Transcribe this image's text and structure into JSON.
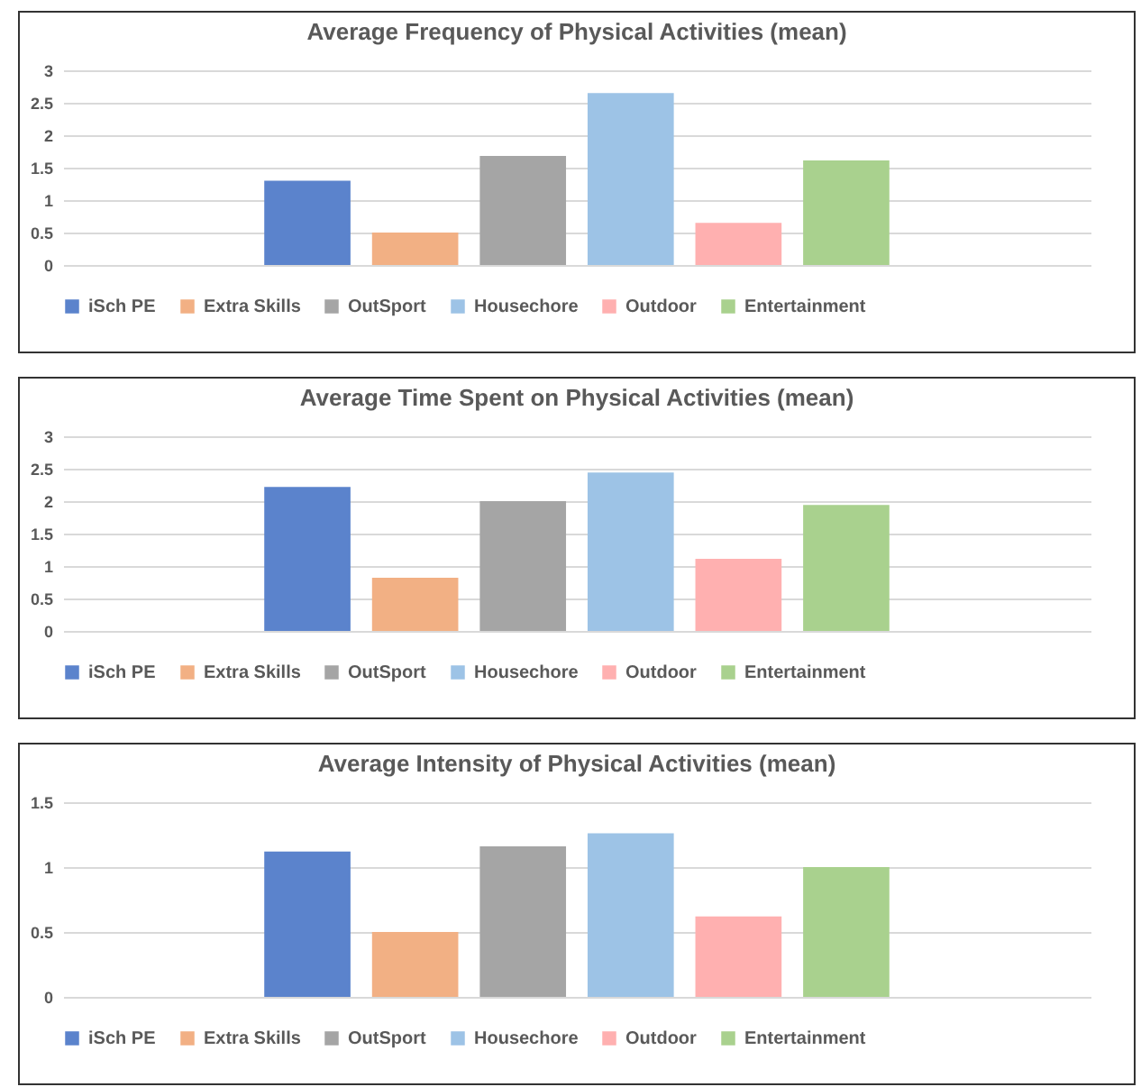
{
  "chart_data": [
    {
      "type": "bar",
      "title": "Average Frequency of Physical Activities (mean)",
      "categories": [
        null
      ],
      "series": [
        {
          "name": "iSch PE",
          "color": "#5b83cc",
          "values": [
            1.3
          ]
        },
        {
          "name": "Extra Skills",
          "color": "#f2b084",
          "values": [
            0.5
          ]
        },
        {
          "name": "OutSport",
          "color": "#a5a5a5",
          "values": [
            1.68
          ]
        },
        {
          "name": "Housechore",
          "color": "#9dc3e6",
          "values": [
            2.65
          ]
        },
        {
          "name": "Outdoor",
          "color": "#ffb0b0",
          "values": [
            0.65
          ]
        },
        {
          "name": "Entertainment",
          "color": "#a9d18e",
          "values": [
            1.61
          ]
        }
      ],
      "ylim": [
        0,
        3
      ],
      "yticks": [
        0,
        0.5,
        1,
        1.5,
        2,
        2.5,
        3
      ],
      "grid": "y",
      "legend": "bottom",
      "tick_labels": "y"
    },
    {
      "type": "bar",
      "title": "Average Time Spent on Physical Activities (mean)",
      "categories": [
        null
      ],
      "series": [
        {
          "name": "iSch PE",
          "color": "#5b83cc",
          "values": [
            2.22
          ]
        },
        {
          "name": "Extra Skills",
          "color": "#f2b084",
          "values": [
            0.82
          ]
        },
        {
          "name": "OutSport",
          "color": "#a5a5a5",
          "values": [
            2.0
          ]
        },
        {
          "name": "Housechore",
          "color": "#9dc3e6",
          "values": [
            2.44
          ]
        },
        {
          "name": "Outdoor",
          "color": "#ffb0b0",
          "values": [
            1.11
          ]
        },
        {
          "name": "Entertainment",
          "color": "#a9d18e",
          "values": [
            1.94
          ]
        }
      ],
      "ylim": [
        0,
        3
      ],
      "yticks": [
        0,
        0.5,
        1,
        1.5,
        2,
        2.5,
        3
      ],
      "grid": "y",
      "legend": "bottom",
      "tick_labels": "y"
    },
    {
      "type": "bar",
      "title": "Average Intensity of Physical Activities (mean)",
      "categories": [
        null
      ],
      "series": [
        {
          "name": "iSch PE",
          "color": "#5b83cc",
          "values": [
            1.12
          ]
        },
        {
          "name": "Extra Skills",
          "color": "#f2b084",
          "values": [
            0.5
          ]
        },
        {
          "name": "OutSport",
          "color": "#a5a5a5",
          "values": [
            1.16
          ]
        },
        {
          "name": "Housechore",
          "color": "#9dc3e6",
          "values": [
            1.26
          ]
        },
        {
          "name": "Outdoor",
          "color": "#ffb0b0",
          "values": [
            0.62
          ]
        },
        {
          "name": "Entertainment",
          "color": "#a9d18e",
          "values": [
            1.0
          ]
        }
      ],
      "ylim": [
        0,
        1.5
      ],
      "yticks": [
        0,
        0.5,
        1,
        1.5
      ],
      "grid": "y",
      "legend": "bottom",
      "tick_labels": "y"
    }
  ]
}
